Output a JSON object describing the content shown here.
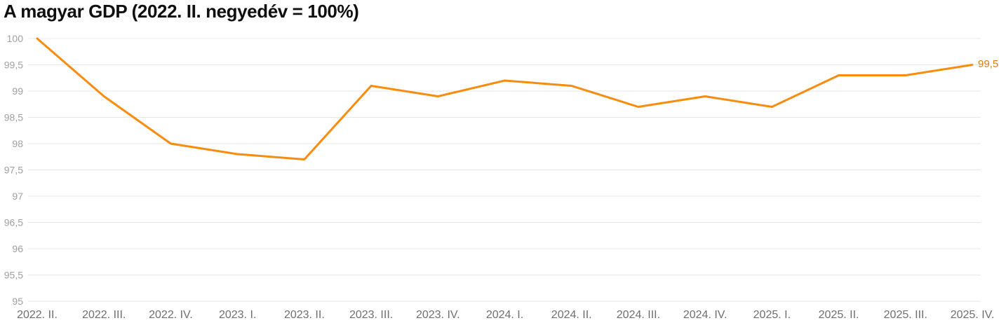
{
  "header": {
    "title": "A magyar GDP (2022. II. negyedév = 100%)"
  },
  "chart_data": {
    "type": "line",
    "title": "A magyar GDP (2022. II. negyedév = 100%)",
    "categories": [
      "2022. II.",
      "2022. III.",
      "2022. IV.",
      "2023. I.",
      "2023. II.",
      "2023. III.",
      "2023. IV.",
      "2024. I.",
      "2024. II.",
      "2024. III.",
      "2024. IV.",
      "2025. I.",
      "2025. II.",
      "2025. III.",
      "2025. IV."
    ],
    "series": [
      {
        "name": "GDP (2022. II. negyedév = 100%)",
        "values": [
          100,
          98.9,
          98,
          97.8,
          97.7,
          99.1,
          98.9,
          99.2,
          99.1,
          98.7,
          98.9,
          98.7,
          99.3,
          99.3,
          99.5
        ]
      }
    ],
    "xlabel": "",
    "ylabel": "",
    "ylim": [
      95,
      100
    ],
    "ytick_step": 0.5,
    "yticks": [
      {
        "value": 100,
        "label": "100"
      },
      {
        "value": 99.5,
        "label": "99,5"
      },
      {
        "value": 99,
        "label": "99"
      },
      {
        "value": 98.5,
        "label": "98,5"
      },
      {
        "value": 98,
        "label": "98"
      },
      {
        "value": 97.5,
        "label": "97,5"
      },
      {
        "value": 97,
        "label": "97"
      },
      {
        "value": 96.5,
        "label": "96,5"
      },
      {
        "value": 96,
        "label": "96"
      },
      {
        "value": 95.5,
        "label": "95,5"
      },
      {
        "value": 95,
        "label": "95"
      }
    ],
    "grid": true,
    "legend": "none",
    "end_label": "99,5",
    "colors": {
      "line": "#f78c0e",
      "end_label": "#dd7b10",
      "gridline": "#e7e7e7",
      "y_tick_text": "#a0a0a0",
      "x_tick_text": "#6f6f6f",
      "title_text": "#0f0f0f",
      "background": "#ffffff"
    }
  }
}
